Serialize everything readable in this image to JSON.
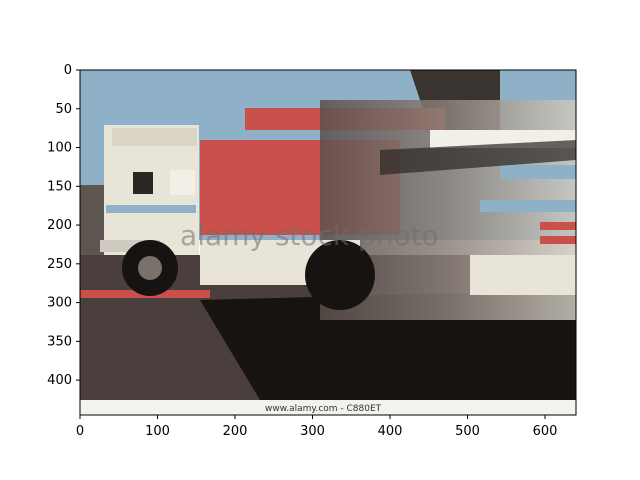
{
  "image": {
    "description": "Posterized photo of trucks on a road; one vehicle is motion-blurred",
    "watermark": "alamy stock photo",
    "credit": "www.alamy.com - C880ET",
    "colors": {
      "sky": "#8fb1c8",
      "road": "#4a3f3c",
      "truck_red": "#c9504b",
      "truck_white": "#e8e4d8",
      "shadow": "#161310",
      "tree": "#3a3430",
      "credit_strip": "#f4f2ee"
    }
  },
  "axes": {
    "x_ticks": [
      "0",
      "100",
      "200",
      "300",
      "400",
      "500",
      "600"
    ],
    "y_ticks": [
      "0",
      "50",
      "100",
      "150",
      "200",
      "250",
      "300",
      "350",
      "400"
    ],
    "x_range": [
      0,
      640
    ],
    "y_range": [
      445,
      0
    ]
  }
}
